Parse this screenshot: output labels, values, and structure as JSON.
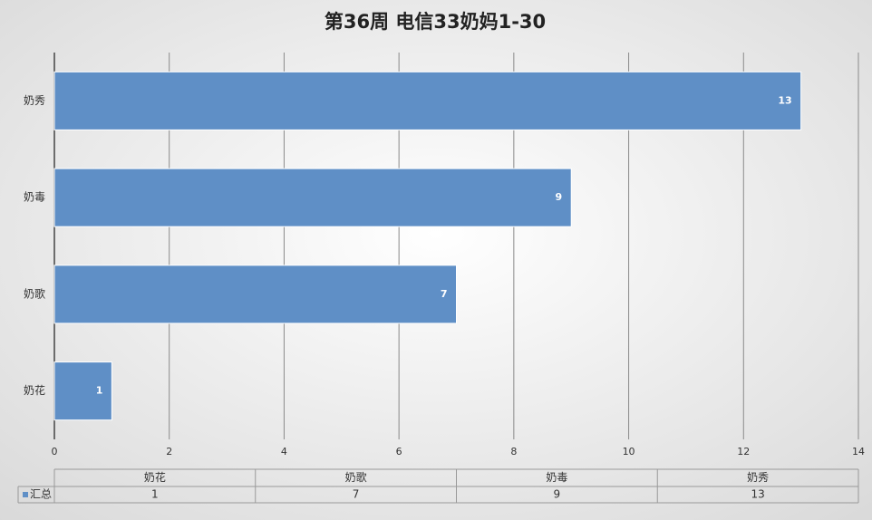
{
  "chart_data": {
    "type": "barh",
    "title": "第36周 电信33奶妈1-30",
    "categories": [
      "奶花",
      "奶歌",
      "奶毒",
      "奶秀"
    ],
    "series": [
      {
        "name": "汇总",
        "color": "#5f8fc6",
        "values": [
          1,
          7,
          9,
          13
        ]
      }
    ],
    "xlim": [
      0,
      14
    ],
    "xticks": [
      0,
      2,
      4,
      6,
      8,
      10,
      12,
      14
    ],
    "grid": true,
    "data_table": true
  }
}
